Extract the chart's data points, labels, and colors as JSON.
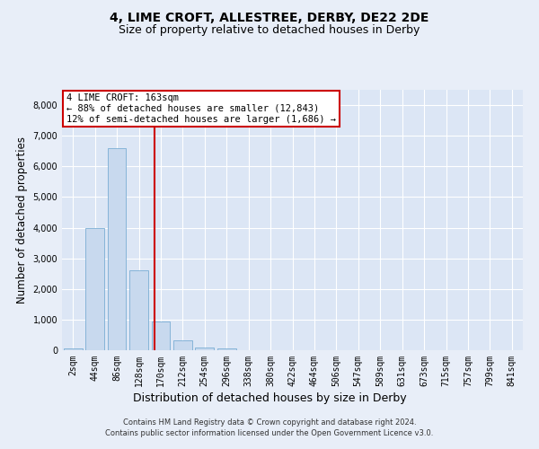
{
  "title_line1": "4, LIME CROFT, ALLESTREE, DERBY, DE22 2DE",
  "title_line2": "Size of property relative to detached houses in Derby",
  "xlabel": "Distribution of detached houses by size in Derby",
  "ylabel": "Number of detached properties",
  "bar_labels": [
    "2sqm",
    "44sqm",
    "86sqm",
    "128sqm",
    "170sqm",
    "212sqm",
    "254sqm",
    "296sqm",
    "338sqm",
    "380sqm",
    "422sqm",
    "464sqm",
    "506sqm",
    "547sqm",
    "589sqm",
    "631sqm",
    "673sqm",
    "715sqm",
    "757sqm",
    "799sqm",
    "841sqm"
  ],
  "bar_values": [
    50,
    4000,
    6600,
    2600,
    950,
    320,
    100,
    60,
    0,
    0,
    0,
    0,
    0,
    0,
    0,
    0,
    0,
    0,
    0,
    0,
    0
  ],
  "bar_color": "#c8d9ee",
  "bar_edge_color": "#7aadd4",
  "vline_color": "#cc0000",
  "vline_x_index": 3.73,
  "ylim": [
    0,
    8500
  ],
  "yticks": [
    0,
    1000,
    2000,
    3000,
    4000,
    5000,
    6000,
    7000,
    8000
  ],
  "annotation_text": "4 LIME CROFT: 163sqm\n← 88% of detached houses are smaller (12,843)\n12% of semi-detached houses are larger (1,686) →",
  "annotation_box_color": "#ffffff",
  "annotation_box_edge": "#cc0000",
  "background_color": "#e8eef8",
  "plot_bg_color": "#dce6f5",
  "footer_line1": "Contains HM Land Registry data © Crown copyright and database right 2024.",
  "footer_line2": "Contains public sector information licensed under the Open Government Licence v3.0.",
  "grid_color": "#ffffff",
  "title_fontsize": 10,
  "subtitle_fontsize": 9,
  "axis_label_fontsize": 8.5,
  "tick_fontsize": 7,
  "footer_fontsize": 6
}
